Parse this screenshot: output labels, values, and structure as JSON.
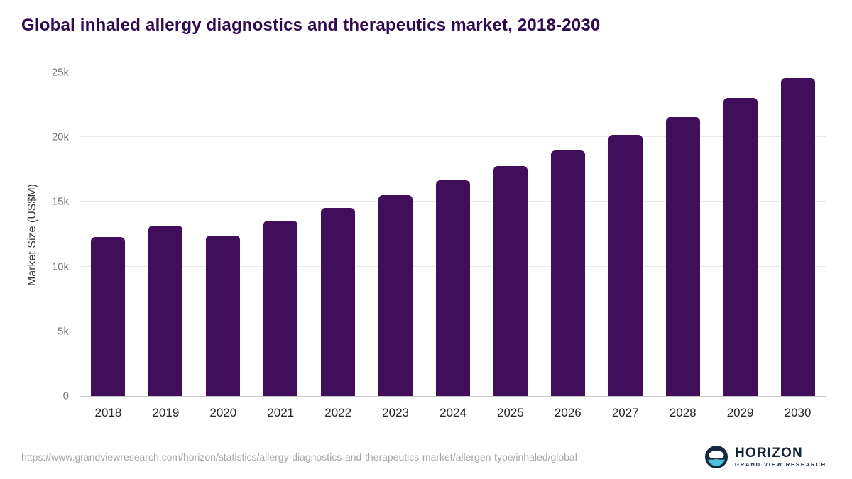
{
  "chart_data": {
    "type": "bar",
    "title": "Global inhaled allergy diagnostics and therapeutics market, 2018-2030",
    "categories": [
      "2018",
      "2019",
      "2020",
      "2021",
      "2022",
      "2023",
      "2024",
      "2025",
      "2026",
      "2027",
      "2028",
      "2029",
      "2030"
    ],
    "values": [
      12300,
      13150,
      12400,
      13550,
      14550,
      15500,
      16650,
      17750,
      18950,
      20200,
      21550,
      23000,
      24550
    ],
    "xlabel": "",
    "ylabel": "Market Size (US$M)",
    "ylim": [
      0,
      25000
    ],
    "y_ticks": [
      {
        "value": 0,
        "label": "0"
      },
      {
        "value": 5000,
        "label": "5k"
      },
      {
        "value": 10000,
        "label": "10k"
      },
      {
        "value": 15000,
        "label": "15k"
      },
      {
        "value": 20000,
        "label": "20k"
      },
      {
        "value": 25000,
        "label": "25k"
      }
    ],
    "grid": "horizontal",
    "legend": "none",
    "bar_color": "#400e5a",
    "title_color": "#300a50"
  },
  "footer": {
    "source_url": "https://www.grandviewresearch.com/horizon/statistics/allergy-diagnostics-and-therapeutics-market/allergen-type/inhaled/global",
    "brand_name": "HORIZON",
    "brand_subtitle": "GRAND VIEW RESEARCH",
    "logo_navy": "#14293e",
    "logo_blue": "#4fc3dc"
  }
}
